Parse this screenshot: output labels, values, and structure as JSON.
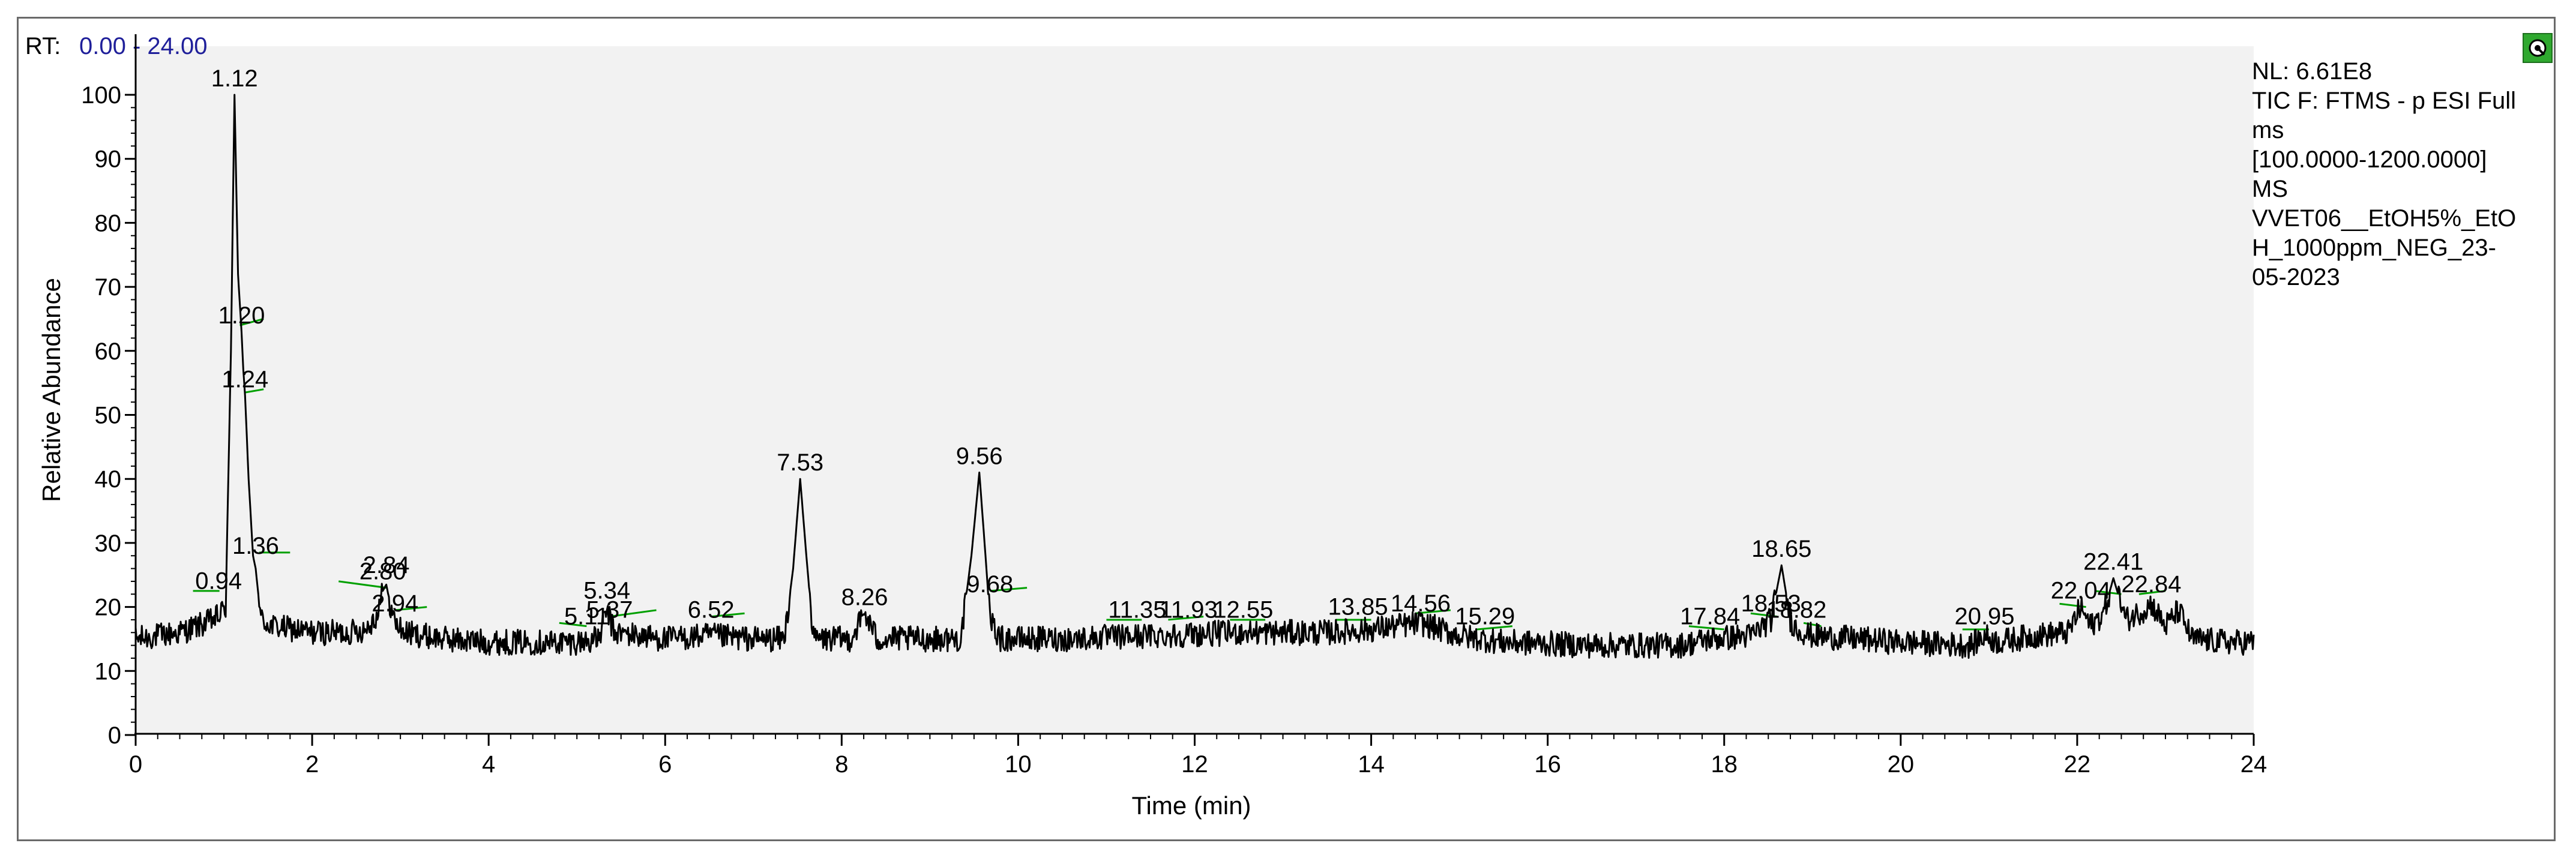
{
  "header": {
    "rt_label": "RT:",
    "rt_range": "0.00 - 24.00"
  },
  "info_panel": {
    "lines": [
      "NL: 6.61E8",
      "TIC F: FTMS - p ESI Full",
      "ms",
      "[100.0000-1200.0000]",
      "MS",
      "VVET06__EtOH5%_EtO",
      "H_1000ppm_NEG_23-",
      "05-2023"
    ]
  },
  "icons": {
    "status": "green-status-icon"
  },
  "colors": {
    "trace": "#000000",
    "baseline_markers": "#00a000",
    "plot_bg": "#f2f2f2",
    "rt_value": "#1f1f9a"
  },
  "chart_data": {
    "type": "line",
    "xlabel": "Time (min)",
    "ylabel": "Relative Abundance",
    "xlim": [
      0,
      24
    ],
    "ylim": [
      0,
      100
    ],
    "x_ticks": [
      0,
      2,
      4,
      6,
      8,
      10,
      12,
      14,
      16,
      18,
      20,
      22,
      24
    ],
    "y_ticks": [
      0,
      10,
      20,
      30,
      40,
      50,
      60,
      70,
      80,
      90,
      100
    ],
    "grid": false,
    "peaks": [
      {
        "label": "0.94",
        "rt": 0.94,
        "y": 21.5
      },
      {
        "label": "1.12",
        "rt": 1.12,
        "y": 100
      },
      {
        "label": "1.20",
        "rt": 1.2,
        "y": 63
      },
      {
        "label": "1.24",
        "rt": 1.24,
        "y": 53
      },
      {
        "label": "1.36",
        "rt": 1.36,
        "y": 27
      },
      {
        "label": "2.80",
        "rt": 2.8,
        "y": 23
      },
      {
        "label": "2.84",
        "rt": 2.84,
        "y": 24
      },
      {
        "label": "2.94",
        "rt": 2.94,
        "y": 18
      },
      {
        "label": "5.11",
        "rt": 5.11,
        "y": 16
      },
      {
        "label": "5.34",
        "rt": 5.34,
        "y": 20
      },
      {
        "label": "5.37",
        "rt": 5.37,
        "y": 17
      },
      {
        "label": "6.52",
        "rt": 6.52,
        "y": 17
      },
      {
        "label": "7.53",
        "rt": 7.53,
        "y": 40
      },
      {
        "label": "8.26",
        "rt": 8.26,
        "y": 19
      },
      {
        "label": "9.56",
        "rt": 9.56,
        "y": 41
      },
      {
        "label": "9.68",
        "rt": 9.68,
        "y": 21
      },
      {
        "label": "11.35",
        "rt": 11.35,
        "y": 17
      },
      {
        "label": "11.93",
        "rt": 11.93,
        "y": 17
      },
      {
        "label": "12.55",
        "rt": 12.55,
        "y": 17
      },
      {
        "label": "13.85",
        "rt": 13.85,
        "y": 17.5
      },
      {
        "label": "14.56",
        "rt": 14.56,
        "y": 18
      },
      {
        "label": "15.29",
        "rt": 15.29,
        "y": 16
      },
      {
        "label": "17.84",
        "rt": 17.84,
        "y": 16
      },
      {
        "label": "18.53",
        "rt": 18.53,
        "y": 18
      },
      {
        "label": "18.65",
        "rt": 18.65,
        "y": 26.5
      },
      {
        "label": "18.82",
        "rt": 18.82,
        "y": 17
      },
      {
        "label": "20.95",
        "rt": 20.95,
        "y": 16
      },
      {
        "label": "22.04",
        "rt": 22.04,
        "y": 20
      },
      {
        "label": "22.41",
        "rt": 22.41,
        "y": 24.5
      },
      {
        "label": "22.84",
        "rt": 22.84,
        "y": 21
      }
    ],
    "baseline_segments": [
      [
        0.65,
        22.5,
        0.95,
        22.5
      ],
      [
        1.18,
        64,
        1.45,
        65
      ],
      [
        1.24,
        53.5,
        1.45,
        54
      ],
      [
        1.4,
        28.5,
        1.75,
        28.5
      ],
      [
        2.3,
        24,
        2.84,
        23
      ],
      [
        2.94,
        19.5,
        3.3,
        20
      ],
      [
        4.8,
        17.5,
        5.11,
        17
      ],
      [
        5.37,
        18.5,
        5.9,
        19.5
      ],
      [
        6.52,
        18.5,
        6.9,
        19
      ],
      [
        9.68,
        22.5,
        10.1,
        23
      ],
      [
        11.0,
        18,
        11.4,
        18
      ],
      [
        11.7,
        18,
        12.1,
        18.5
      ],
      [
        12.4,
        18,
        12.8,
        18
      ],
      [
        13.6,
        18,
        14.0,
        18
      ],
      [
        14.5,
        19,
        14.9,
        19.5
      ],
      [
        15.2,
        16.5,
        15.6,
        17
      ],
      [
        17.6,
        17,
        18.0,
        16.5
      ],
      [
        18.3,
        19,
        18.6,
        18.5
      ],
      [
        18.9,
        17.5,
        19.1,
        17
      ],
      [
        20.7,
        16.5,
        21.0,
        16.5
      ],
      [
        21.8,
        20.5,
        22.1,
        20
      ],
      [
        22.2,
        22.5,
        22.5,
        22
      ],
      [
        22.7,
        22,
        23.0,
        22.5
      ]
    ],
    "profile": [
      [
        0,
        15
      ],
      [
        0.5,
        16
      ],
      [
        0.8,
        17.5
      ],
      [
        0.94,
        18.5
      ],
      [
        1.02,
        20
      ],
      [
        1.08,
        60
      ],
      [
        1.12,
        100
      ],
      [
        1.16,
        72
      ],
      [
        1.2,
        63
      ],
      [
        1.22,
        57
      ],
      [
        1.24,
        53
      ],
      [
        1.28,
        40
      ],
      [
        1.33,
        28
      ],
      [
        1.36,
        26
      ],
      [
        1.42,
        18
      ],
      [
        1.55,
        17
      ],
      [
        2.0,
        16
      ],
      [
        2.4,
        16
      ],
      [
        2.6,
        16.5
      ],
      [
        2.75,
        19
      ],
      [
        2.8,
        22.5
      ],
      [
        2.84,
        23.5
      ],
      [
        2.89,
        20
      ],
      [
        2.94,
        17.5
      ],
      [
        3.05,
        16
      ],
      [
        3.5,
        15
      ],
      [
        4.0,
        14.5
      ],
      [
        5.0,
        14.5
      ],
      [
        5.25,
        15
      ],
      [
        5.34,
        19.5
      ],
      [
        5.42,
        16
      ],
      [
        6.0,
        15
      ],
      [
        6.5,
        15.5
      ],
      [
        7.0,
        15
      ],
      [
        7.35,
        15
      ],
      [
        7.45,
        26
      ],
      [
        7.53,
        40
      ],
      [
        7.6,
        28
      ],
      [
        7.68,
        15
      ],
      [
        8.1,
        15
      ],
      [
        8.26,
        19
      ],
      [
        8.4,
        15
      ],
      [
        9.35,
        15
      ],
      [
        9.47,
        28
      ],
      [
        9.56,
        41
      ],
      [
        9.63,
        28
      ],
      [
        9.68,
        18
      ],
      [
        9.8,
        15
      ],
      [
        10.5,
        15
      ],
      [
        11.5,
        15.5
      ],
      [
        12.5,
        16
      ],
      [
        13.5,
        16
      ],
      [
        14.0,
        16.5
      ],
      [
        14.56,
        17.5
      ],
      [
        15.0,
        15.5
      ],
      [
        15.5,
        14.5
      ],
      [
        16.5,
        14
      ],
      [
        17.5,
        14
      ],
      [
        17.84,
        15
      ],
      [
        18.3,
        15.5
      ],
      [
        18.53,
        18
      ],
      [
        18.65,
        26.5
      ],
      [
        18.75,
        18
      ],
      [
        18.82,
        16.5
      ],
      [
        19.0,
        15.5
      ],
      [
        19.5,
        15
      ],
      [
        20.0,
        14.5
      ],
      [
        20.8,
        14
      ],
      [
        20.95,
        15.5
      ],
      [
        21.1,
        14.5
      ],
      [
        21.5,
        15.5
      ],
      [
        21.9,
        16
      ],
      [
        22.04,
        20
      ],
      [
        22.15,
        17
      ],
      [
        22.3,
        19
      ],
      [
        22.41,
        24.5
      ],
      [
        22.55,
        18
      ],
      [
        22.75,
        19.5
      ],
      [
        22.84,
        20.5
      ],
      [
        23.0,
        17
      ],
      [
        23.15,
        19.5
      ],
      [
        23.3,
        15
      ],
      [
        23.7,
        14.5
      ],
      [
        24.0,
        14.5
      ]
    ]
  }
}
